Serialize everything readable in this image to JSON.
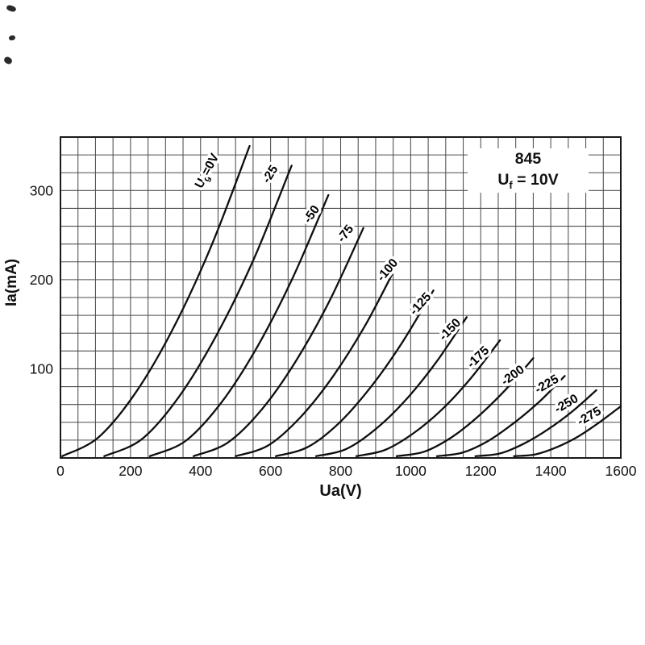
{
  "page": {
    "background": "#ffffff"
  },
  "chart_data": {
    "type": "line",
    "title": "",
    "xlabel": "Ua(V)",
    "ylabel": "Ia(mA)",
    "xlim": [
      0,
      1600
    ],
    "ylim": [
      0,
      360
    ],
    "x_ticks": [
      0,
      200,
      400,
      600,
      800,
      1000,
      1200,
      1400,
      1600
    ],
    "y_ticks": [
      100,
      200,
      300
    ],
    "x_grid_step": 50,
    "y_grid_step": 20,
    "grid": true,
    "legend": "labels-on-curves",
    "colors": {
      "grid": "#4d4d4d",
      "border": "#1a1a1a",
      "curve": "#0f0f0f",
      "text": "#111111",
      "background": "#ffffff"
    },
    "annotation": {
      "model": "845",
      "uf_pre": "U",
      "uf_sub": "f",
      "uf_post": " = 10V"
    },
    "series": [
      {
        "ug": "0",
        "label": "Ug=0V",
        "label_parts": {
          "pre": "U",
          "sub": "g",
          "post": "=0V"
        },
        "label_at": [
          428,
          320
        ],
        "label_angle": -62,
        "points": [
          [
            5,
            2
          ],
          [
            108,
            23
          ],
          [
            216,
            74
          ],
          [
            324,
            147
          ],
          [
            432,
            239
          ],
          [
            540,
            350
          ]
        ]
      },
      {
        "ug": "-25",
        "label": "-25",
        "label_at": [
          608,
          316
        ],
        "label_angle": -58,
        "points": [
          [
            125,
            2
          ],
          [
            232,
            21
          ],
          [
            339,
            69
          ],
          [
            446,
            138
          ],
          [
            553,
            224
          ],
          [
            660,
            328
          ]
        ]
      },
      {
        "ug": "-50",
        "label": "-50",
        "label_at": [
          726,
          271
        ],
        "label_angle": -55,
        "points": [
          [
            255,
            2
          ],
          [
            357,
            19
          ],
          [
            459,
            62
          ],
          [
            561,
            124
          ],
          [
            663,
            202
          ],
          [
            765,
            295
          ]
        ]
      },
      {
        "ug": "-75",
        "label": "-75",
        "label_at": [
          822,
          249
        ],
        "label_angle": -52,
        "points": [
          [
            380,
            2
          ],
          [
            477,
            17
          ],
          [
            574,
            54
          ],
          [
            671,
            108
          ],
          [
            768,
            176
          ],
          [
            865,
            258
          ]
        ]
      },
      {
        "ug": "-100",
        "label": "-100",
        "label_at": [
          942,
          208
        ],
        "label_angle": -50,
        "points": [
          [
            500,
            2
          ],
          [
            593,
            14
          ],
          [
            686,
            46
          ],
          [
            779,
            92
          ],
          [
            872,
            150
          ],
          [
            965,
            220
          ]
        ]
      },
      {
        "ug": "-125",
        "label": "-125",
        "label_at": [
          1036,
          170
        ],
        "label_angle": -48,
        "points": [
          [
            615,
            2
          ],
          [
            705,
            12
          ],
          [
            795,
            39
          ],
          [
            885,
            79
          ],
          [
            975,
            129
          ],
          [
            1065,
            188
          ]
        ]
      },
      {
        "ug": "-150",
        "label": "-150",
        "label_at": [
          1120,
          141
        ],
        "label_angle": -46,
        "points": [
          [
            730,
            2
          ],
          [
            816,
            10
          ],
          [
            902,
            33
          ],
          [
            988,
            66
          ],
          [
            1074,
            108
          ],
          [
            1160,
            158
          ]
        ]
      },
      {
        "ug": "-175",
        "label": "-175",
        "label_at": [
          1200,
          110
        ],
        "label_angle": -44,
        "points": [
          [
            845,
            2
          ],
          [
            927,
            9
          ],
          [
            1009,
            28
          ],
          [
            1091,
            55
          ],
          [
            1173,
            90
          ],
          [
            1255,
            132
          ]
        ]
      },
      {
        "ug": "-200",
        "label": "-200",
        "label_at": [
          1298,
          89
        ],
        "label_angle": -36,
        "points": [
          [
            960,
            2
          ],
          [
            1038,
            7
          ],
          [
            1116,
            23
          ],
          [
            1194,
            47
          ],
          [
            1272,
            77
          ],
          [
            1350,
            112
          ]
        ]
      },
      {
        "ug": "-225",
        "label": "-225",
        "label_at": [
          1394,
          79
        ],
        "label_angle": -30,
        "points": [
          [
            1075,
            2
          ],
          [
            1148,
            6
          ],
          [
            1221,
            19
          ],
          [
            1294,
            39
          ],
          [
            1367,
            63
          ],
          [
            1440,
            92
          ]
        ]
      },
      {
        "ug": "-250",
        "label": "-250",
        "label_at": [
          1450,
          57
        ],
        "label_angle": -30,
        "points": [
          [
            1185,
            2
          ],
          [
            1254,
            5
          ],
          [
            1323,
            16
          ],
          [
            1392,
            32
          ],
          [
            1461,
            52
          ],
          [
            1530,
            76
          ]
        ]
      },
      {
        "ug": "-275",
        "label": "-275",
        "label_at": [
          1515,
          43
        ],
        "label_angle": -30,
        "points": [
          [
            1295,
            2
          ],
          [
            1356,
            4
          ],
          [
            1417,
            12
          ],
          [
            1478,
            24
          ],
          [
            1539,
            40
          ],
          [
            1600,
            58
          ]
        ]
      }
    ]
  }
}
